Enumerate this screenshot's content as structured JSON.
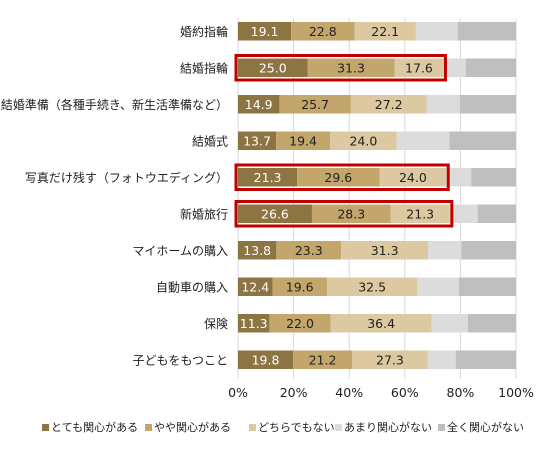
{
  "chart_data": {
    "type": "bar",
    "orientation": "horizontal",
    "stacked": true,
    "categories": [
      "婚約指輪",
      "結婚指輪",
      "結婚準備（各種手続き、新生活準備など）",
      "結婚式",
      "写真だけ残す（フォトウエディング）",
      "新婚旅行",
      "マイホームの購入",
      "自動車の購入",
      "保険",
      "子どもをもつこと"
    ],
    "series": [
      {
        "name": "とても関心がある",
        "color": "#8c7543",
        "values": [
          19.1,
          25.0,
          14.9,
          13.7,
          21.3,
          26.6,
          13.8,
          12.4,
          11.3,
          19.8
        ]
      },
      {
        "name": "やや関心がある",
        "color": "#c3a66b",
        "values": [
          22.8,
          31.3,
          25.7,
          19.4,
          29.6,
          28.3,
          23.3,
          19.6,
          22.0,
          21.2
        ]
      },
      {
        "name": "どちらでもない",
        "color": "#dcc9a1",
        "values": [
          22.1,
          17.6,
          27.2,
          24.0,
          24.0,
          21.3,
          31.3,
          32.5,
          36.4,
          27.3
        ]
      },
      {
        "name": "あまり関心がない",
        "color": "#dcdcdc",
        "values": [
          15.0,
          8.0,
          12.0,
          19.0,
          9.0,
          10.0,
          12.0,
          15.0,
          13.0,
          10.0
        ]
      },
      {
        "name": "全く関心がない",
        "color": "#bfbfbf",
        "values": [
          21.0,
          18.1,
          20.2,
          23.9,
          16.1,
          13.8,
          19.6,
          20.5,
          17.3,
          21.7
        ]
      }
    ],
    "labeled_series_count": 3,
    "xlim": [
      0,
      100
    ],
    "xticks": [
      "0%",
      "20%",
      "40%",
      "60%",
      "80%",
      "100%"
    ],
    "grid": true,
    "legend": "bottom",
    "highlighted_categories": [
      1,
      4,
      5
    ],
    "highlight_color": "#c00000",
    "title": "",
    "xlabel": "",
    "ylabel": ""
  }
}
